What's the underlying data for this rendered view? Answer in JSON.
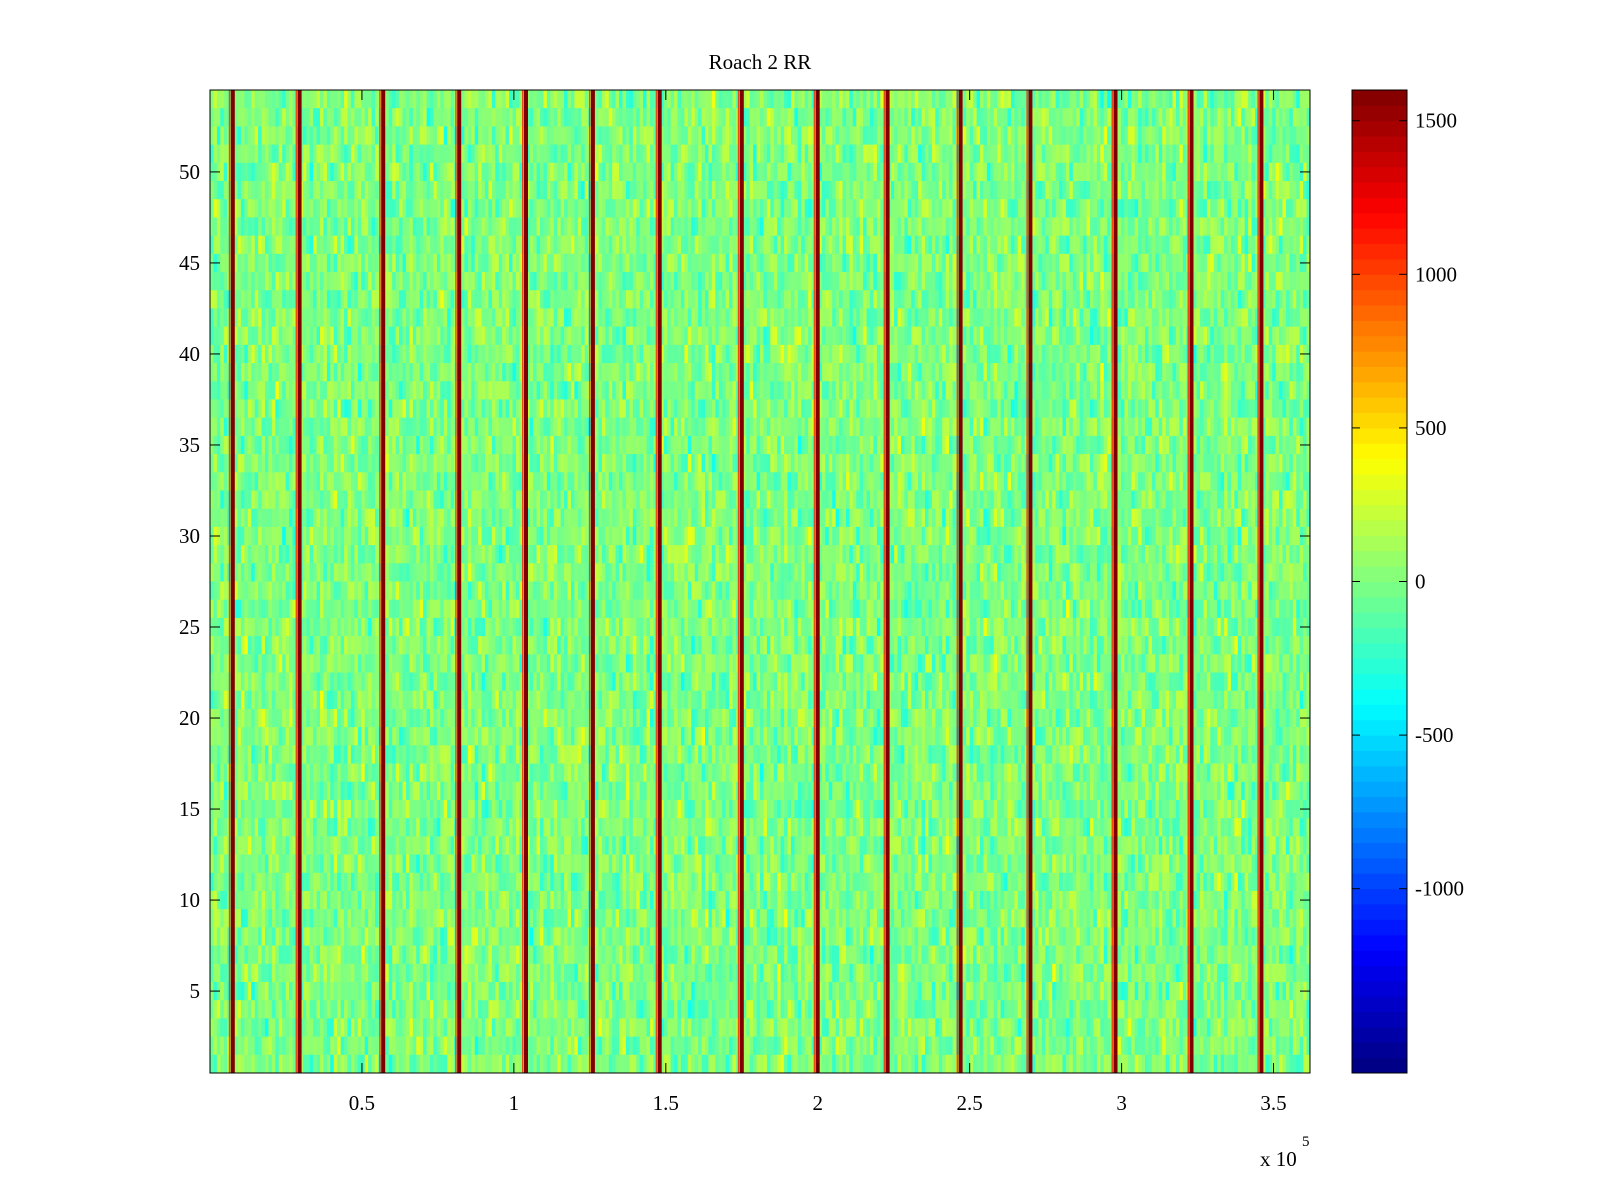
{
  "chart_data": {
    "type": "heatmap",
    "title": "Roach 2 RR",
    "xlabel": "",
    "ylabel": "",
    "x_exponent_base": "x 10",
    "x_exponent_power": "5",
    "xlim": [
      0,
      3.62
    ],
    "ylim": [
      0.5,
      54.5
    ],
    "x_ticks": [
      0.5,
      1,
      1.5,
      2,
      2.5,
      3,
      3.5
    ],
    "x_tick_labels": [
      "0.5",
      "1",
      "1.5",
      "2",
      "2.5",
      "3",
      "3.5"
    ],
    "y_ticks": [
      5,
      10,
      15,
      20,
      25,
      30,
      35,
      40,
      45,
      50
    ],
    "y_tick_labels": [
      "5",
      "10",
      "15",
      "20",
      "25",
      "30",
      "35",
      "40",
      "45",
      "50"
    ],
    "rows": 54,
    "columns_approx": 320,
    "typical_value_range": [
      -400,
      400
    ],
    "colormap": "jet",
    "clim": [
      -1600,
      1600
    ],
    "colorbar": {
      "ticks": [
        -1000,
        -500,
        0,
        500,
        1000,
        1500
      ],
      "tick_labels": [
        "-1000",
        "-500",
        "0",
        "500",
        "1000",
        "1500"
      ]
    },
    "spike_columns_x_1e5": [
      0.075,
      0.295,
      0.57,
      0.82,
      1.04,
      1.26,
      1.48,
      1.75,
      2.0,
      2.23,
      2.47,
      2.7,
      2.98,
      3.23,
      3.46
    ],
    "spike_value": 1600,
    "grid": false
  }
}
